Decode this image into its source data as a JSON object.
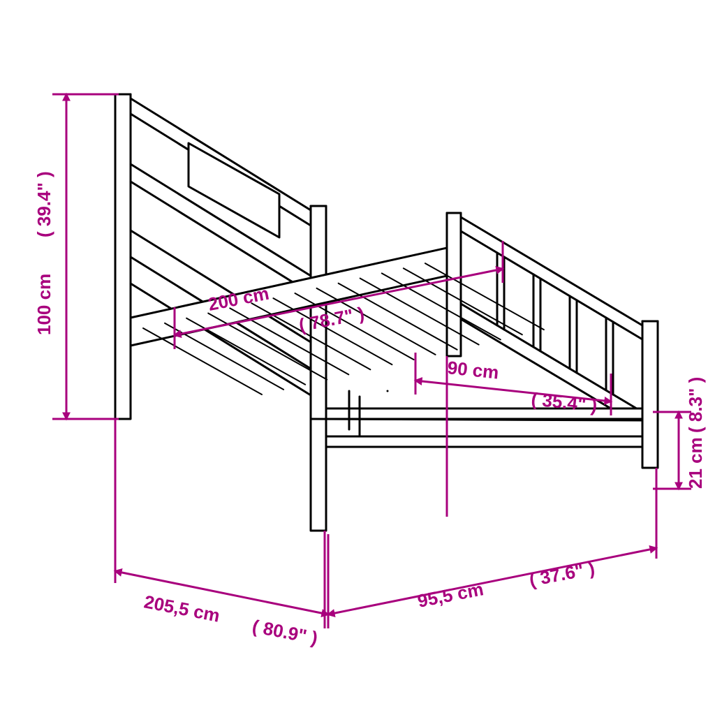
{
  "diagram": {
    "background_color": "#ffffff",
    "product_stroke": "#000000",
    "product_stroke_width": 3
  },
  "dimensions": {
    "color": "#a8007d",
    "stroke_width": 3,
    "font_size": 26,
    "font_weight": "bold",
    "arrow_size": 12,
    "height": {
      "cm": "100 cm",
      "in": "( 39.4\" )"
    },
    "inner_len": {
      "cm": "200 cm",
      "in": "( 78.7\" )"
    },
    "inner_wid": {
      "cm": "90 cm",
      "in": "( 35.4\" )"
    },
    "foot_height": {
      "cm": "21 cm",
      "in": "( 8.3\" )"
    },
    "outer_len": {
      "cm": "205,5 cm",
      "in": "( 80.9\" )"
    },
    "outer_wid": {
      "cm": "95,5 cm",
      "in": "( 37.6\" )"
    }
  }
}
